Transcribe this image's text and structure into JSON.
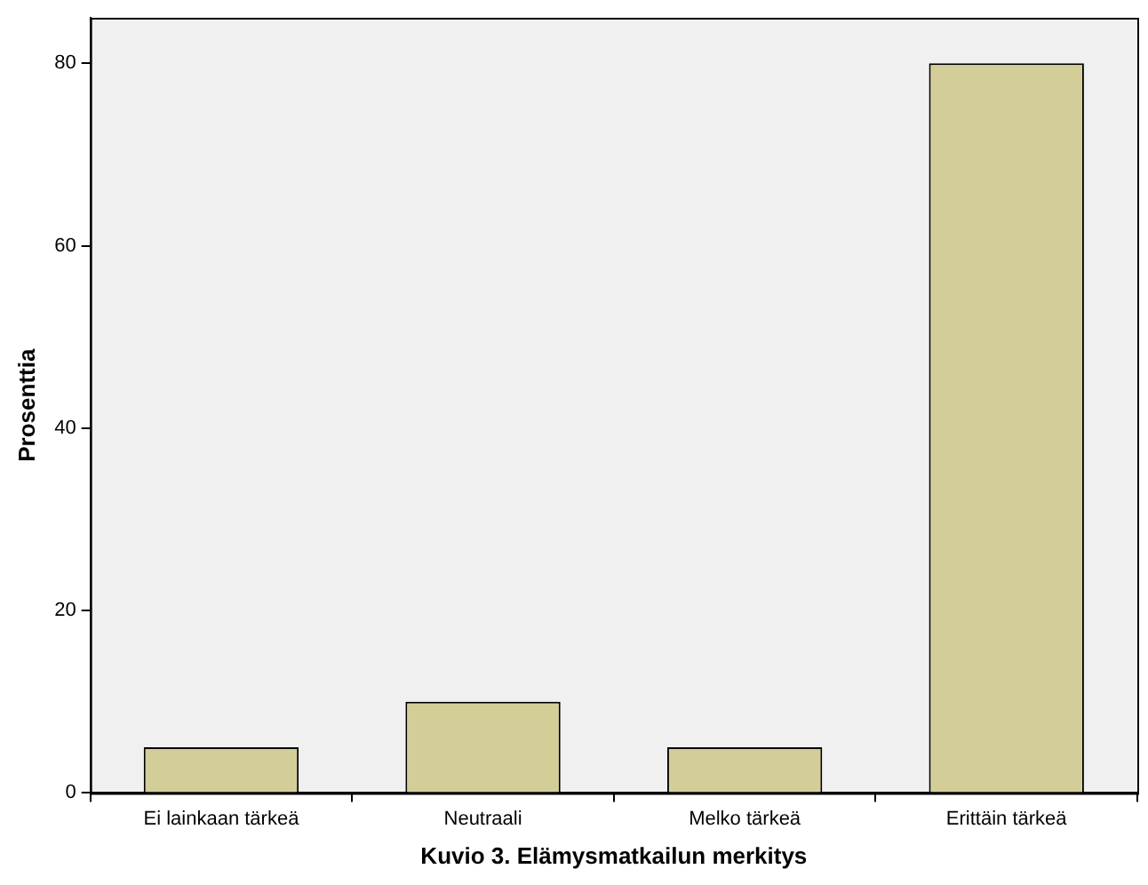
{
  "chart_data": {
    "type": "bar",
    "xlabel": "Kuvio 3. Elämysmatkailun merkitys",
    "ylabel": "Prosenttia",
    "categories": [
      "Ei lainkaan tärkeä",
      "Neutraali",
      "Melko tärkeä",
      "Erittäin tärkeä"
    ],
    "values": [
      5,
      10,
      5,
      80
    ],
    "color": "#d3ce97",
    "ylim": [
      0,
      85
    ],
    "yticks": [
      0,
      20,
      40,
      60,
      80
    ],
    "grid": false,
    "legend": false
  }
}
